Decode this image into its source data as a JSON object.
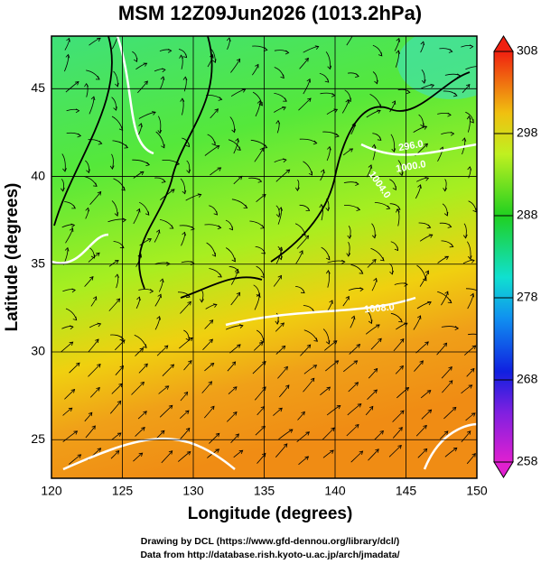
{
  "title": "MSM 12Z09Jun2026 (1013.2hPa)",
  "x_axis": {
    "label": "Longitude (degrees)",
    "lim": [
      120,
      150
    ],
    "ticks": [
      120,
      125,
      130,
      135,
      140,
      145,
      150
    ]
  },
  "y_axis": {
    "label": "Latitude  (degrees)",
    "lim": [
      22.8,
      48
    ],
    "ticks": [
      25,
      30,
      35,
      40,
      45
    ]
  },
  "colorbar": {
    "lim": [
      258,
      308
    ],
    "ticks": [
      258,
      268,
      278,
      288,
      298,
      308
    ]
  },
  "contour_labels": [
    "296.0",
    "1000.0",
    "1004.0",
    "1008.0"
  ],
  "credits": [
    "Drawing by DCL (https://www.gfd-dennou.org/library/dcl/)",
    "Data from http://database.rish.kyoto-u.ac.jp/arch/jmadata/"
  ]
}
